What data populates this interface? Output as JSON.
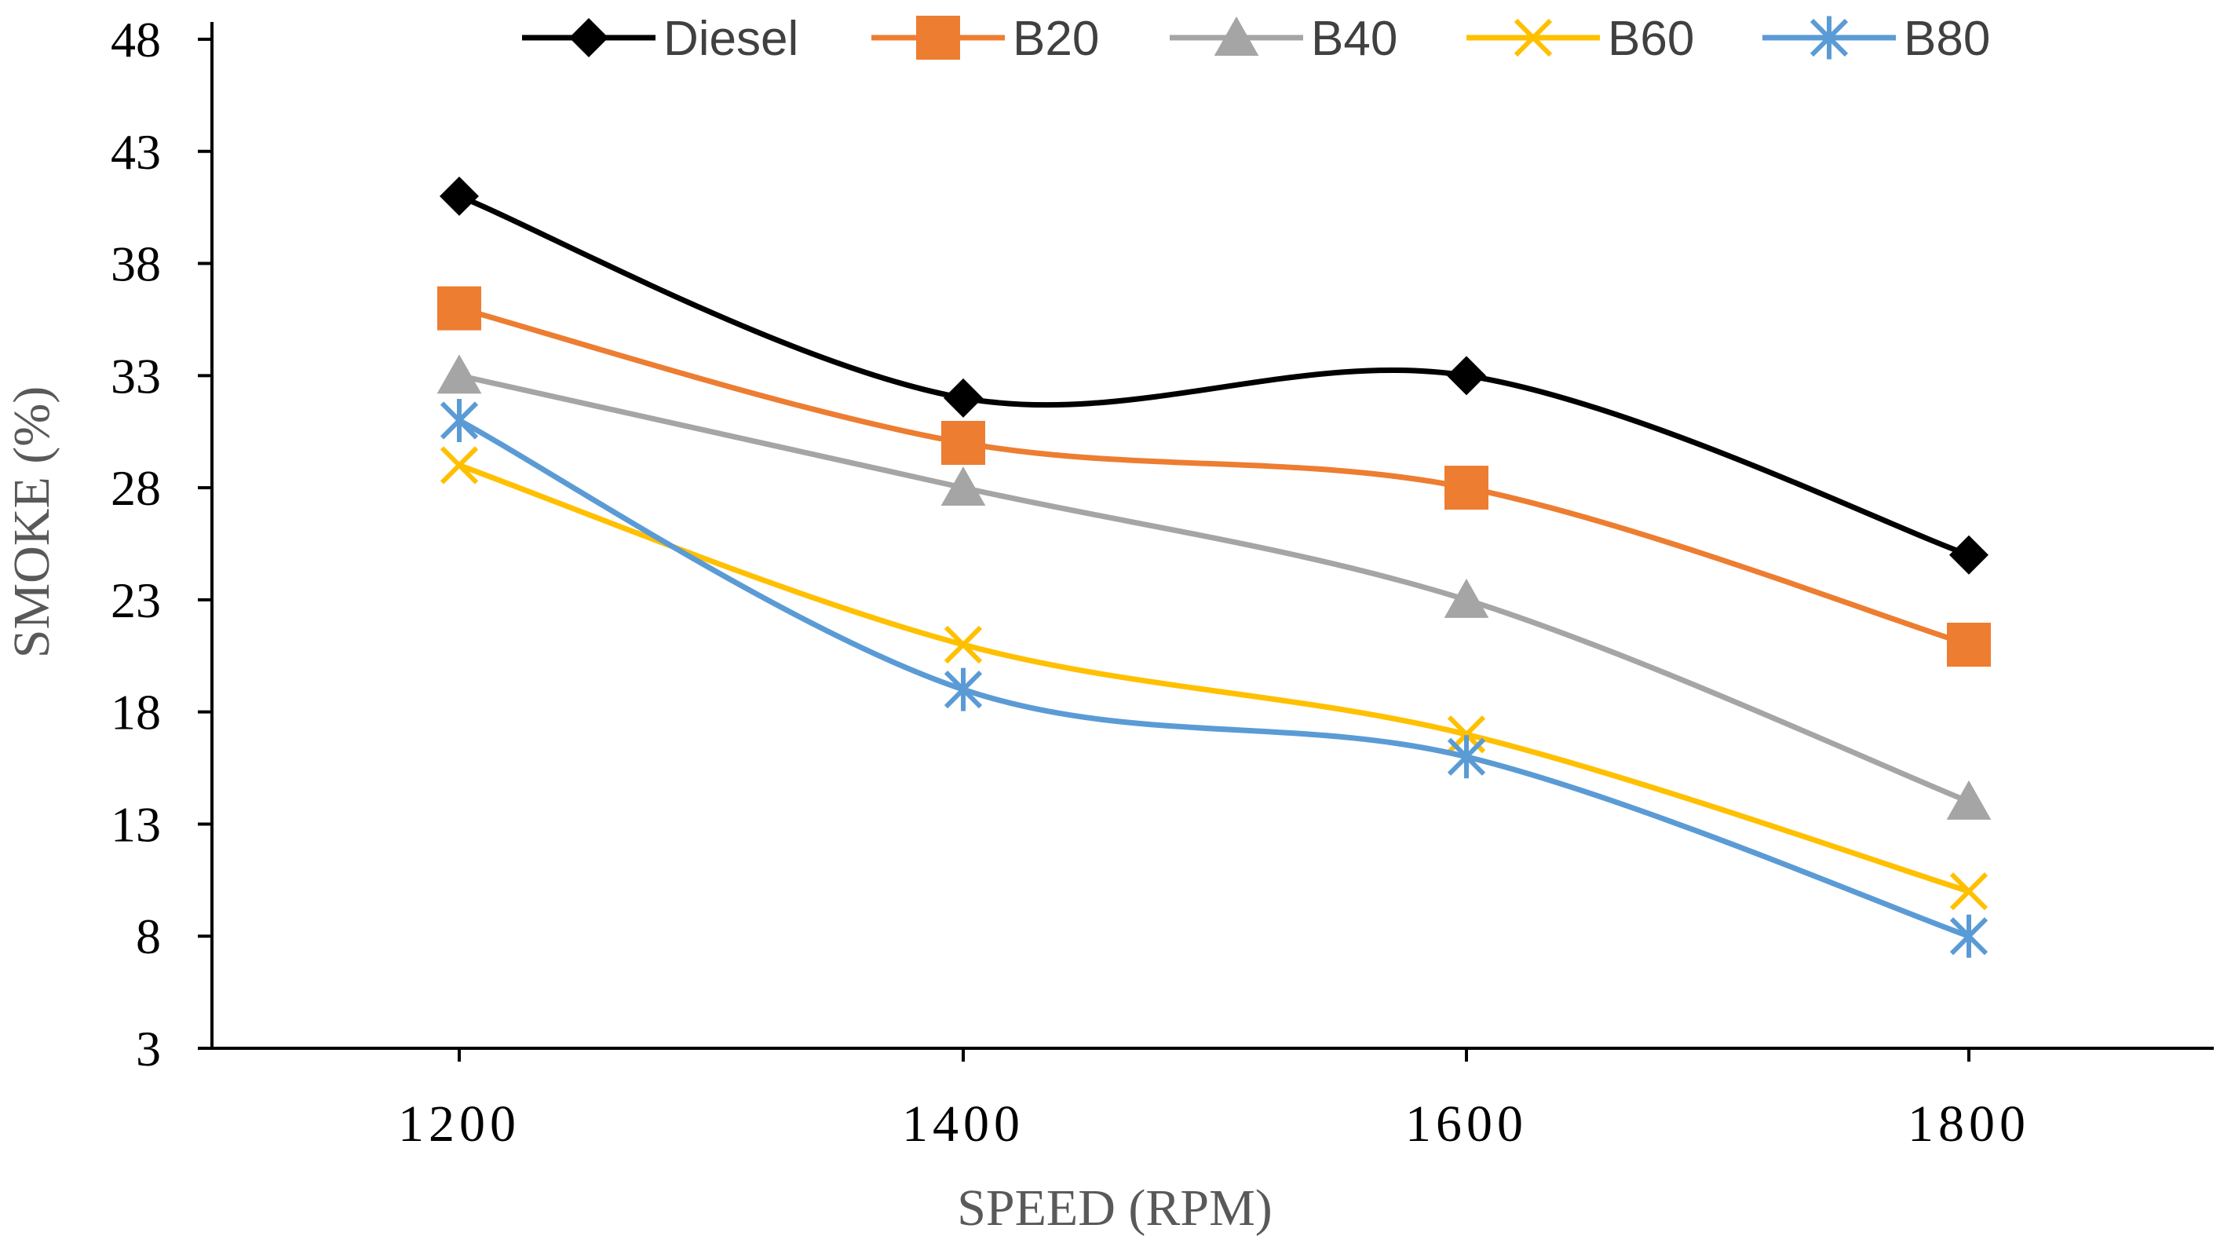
{
  "chart_data": {
    "type": "line",
    "title": "",
    "xlabel": "SPEED (RPM)",
    "ylabel": "SMOKE (%)",
    "categories": [
      "1200",
      "1400",
      "1600",
      "1800"
    ],
    "ylim": [
      3,
      48
    ],
    "yticks": [
      "3",
      "8",
      "13",
      "18",
      "23",
      "28",
      "33",
      "38",
      "43",
      "48"
    ],
    "grid": false,
    "legend_position": "top",
    "series": [
      {
        "name": "Diesel",
        "values": [
          41,
          32,
          33,
          25
        ],
        "color": "#000000",
        "marker": "diamond"
      },
      {
        "name": "B20",
        "values": [
          36,
          30,
          28,
          21
        ],
        "color": "#ED7D31",
        "marker": "square"
      },
      {
        "name": "B40",
        "values": [
          33,
          28,
          23,
          14
        ],
        "color": "#A5A5A5",
        "marker": "triangle"
      },
      {
        "name": "B60",
        "values": [
          29,
          21,
          17,
          10
        ],
        "color": "#FFC000",
        "marker": "x"
      },
      {
        "name": "B80",
        "values": [
          31,
          19,
          16,
          8
        ],
        "color": "#5B9BD5",
        "marker": "star"
      }
    ]
  }
}
